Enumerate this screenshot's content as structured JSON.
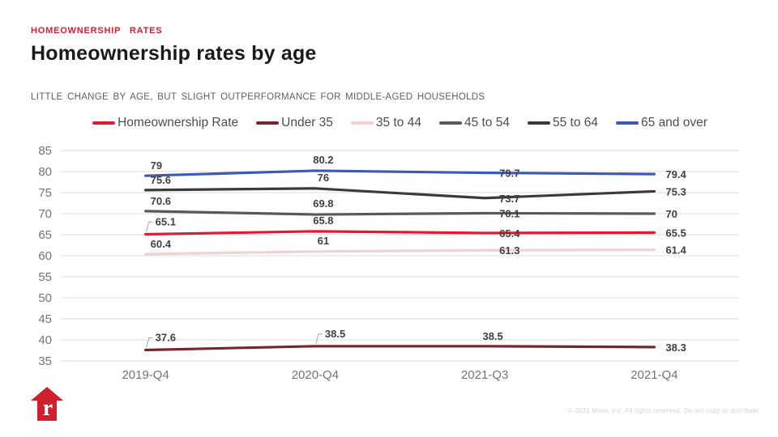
{
  "header": {
    "eyebrow": "HOMEOWNERSHIP RATES",
    "title": "Homeownership rates by age",
    "subtitle": "LITTLE CHANGE BY AGE, BUT SLIGHT OUTPERFORMANCE FOR MIDDLE-AGED HOUSEHOLDS"
  },
  "chart_data": {
    "type": "line",
    "title": "Homeownership rates by age",
    "categories": [
      "2019-Q4",
      "2020-Q4",
      "2021-Q3",
      "2021-Q4"
    ],
    "series": [
      {
        "name": "Homeownership Rate",
        "color": "#e11931",
        "values": [
          65.1,
          65.8,
          65.4,
          65.5
        ],
        "leader_points": [
          0
        ]
      },
      {
        "name": "Under 35",
        "color": "#76272c",
        "values": [
          37.6,
          38.5,
          38.5,
          38.3
        ],
        "leader_points": [
          0,
          1
        ],
        "label_overrides": {
          "2": {
            "dx": 10,
            "dy": -8,
            "a": "middle"
          }
        }
      },
      {
        "name": "35 to 44",
        "color": "#efd3d4",
        "values": [
          60.4,
          61,
          61.3,
          61.4
        ]
      },
      {
        "name": "45 to 54",
        "color": "#595959",
        "values": [
          70.6,
          69.8,
          70.1,
          70
        ]
      },
      {
        "name": "55 to 64",
        "color": "#3b3b3b",
        "values": [
          75.6,
          76,
          73.7,
          75.3
        ]
      },
      {
        "name": "65 and over",
        "color": "#3e59b4",
        "values": [
          79,
          80.2,
          79.7,
          79.4
        ]
      }
    ],
    "draw_order": [
      2,
      3,
      4,
      5,
      1,
      0
    ],
    "xlabel": "",
    "ylabel": "",
    "ylim": [
      35,
      85
    ],
    "ytick": 5,
    "grid": true,
    "legend_position": "top"
  },
  "colors": {
    "grid": "#dcdcdc",
    "axis_text": "#737373",
    "data_label": "#404040",
    "leader": "#a6a6a6",
    "logo_red": "#d0202e"
  },
  "footer": {
    "copyright": "© 2021 Move, Inc. All rights reserved. Do not copy or distribute.",
    "logo_letter": "r"
  }
}
